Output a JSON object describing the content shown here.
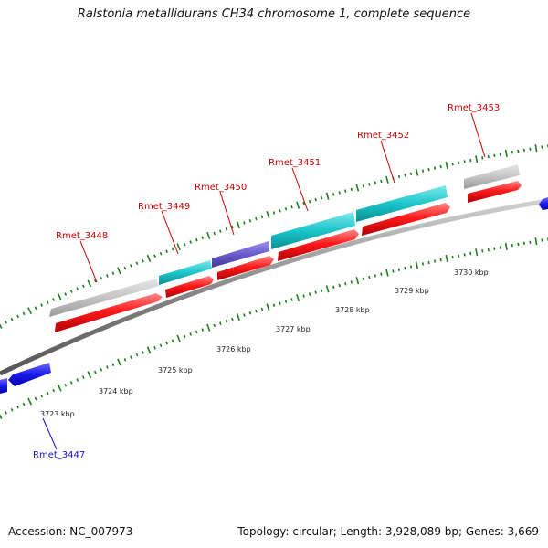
{
  "title": "Ralstonia metallidurans CH34 chromosome 1, complete sequence",
  "footer": {
    "accession": "Accession: NC_007973",
    "summary": "Topology: circular; Length: 3,928,089 bp; Genes: 3,669"
  },
  "colors": {
    "cds": "#ee1111",
    "backbone": "#888888",
    "dots": "#1a7f1a",
    "cog_gray": "#bdbdbd",
    "cog_cyan": "#1bbfc4",
    "cog_purple": "#6a5acd",
    "reverse": "#1414e0"
  },
  "scale_labels": [
    "3723 kbp",
    "3724 kbp",
    "3725 kbp",
    "3726 kbp",
    "3727 kbp",
    "3728 kbp",
    "3729 kbp",
    "3730 kbp"
  ],
  "genes": [
    {
      "name": "Rmet_3447",
      "color": "#1010cc"
    },
    {
      "name": "Rmet_3448",
      "color": "#cc0000"
    },
    {
      "name": "Rmet_3449",
      "color": "#cc0000"
    },
    {
      "name": "Rmet_3450",
      "color": "#cc0000"
    },
    {
      "name": "Rmet_3451",
      "color": "#cc0000"
    },
    {
      "name": "Rmet_3452",
      "color": "#cc0000"
    },
    {
      "name": "Rmet_3453",
      "color": "#cc0000"
    }
  ]
}
